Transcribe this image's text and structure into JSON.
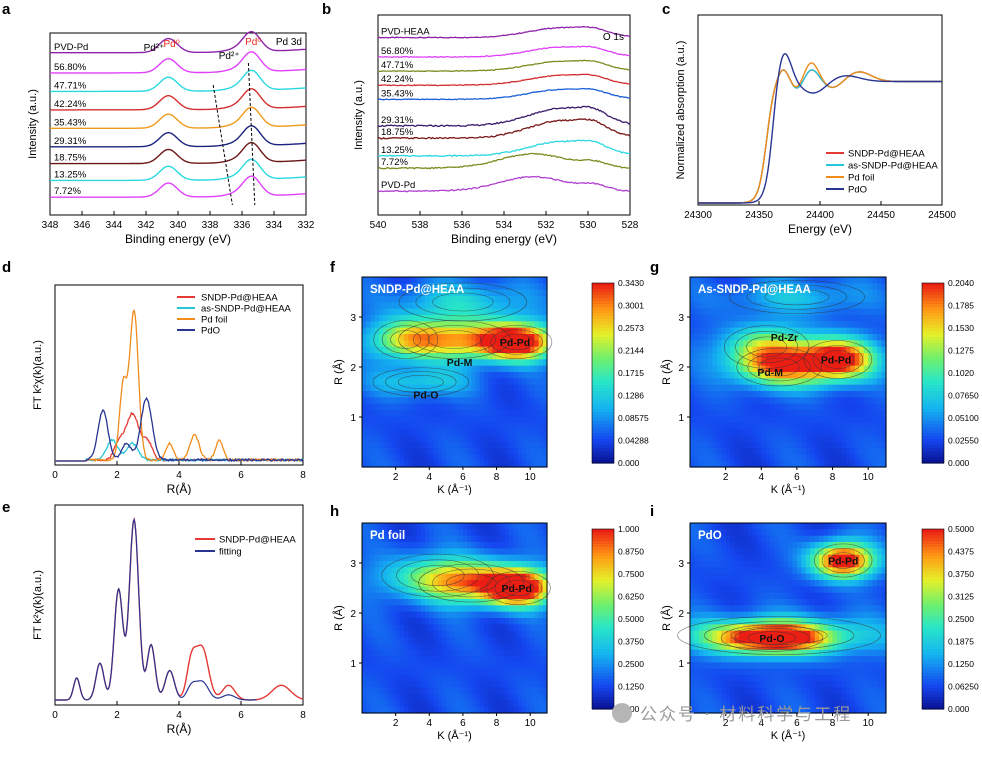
{
  "panel_labels": [
    "a",
    "b",
    "c",
    "d",
    "e",
    "f",
    "g",
    "h",
    "i"
  ],
  "watermark": "公众号 · 材料科学与工程",
  "chart_data": [
    {
      "id": "a",
      "type": "line",
      "xlabel": "Binding energy (eV)",
      "ylabel": "Intensity (a.u.)",
      "xlim": [
        348,
        332
      ],
      "xticks": [
        348,
        346,
        344,
        342,
        340,
        338,
        336,
        334,
        332
      ],
      "annot_corner": "Pd 3d",
      "annotations": [
        {
          "text": "Pd²⁺",
          "x": 341.5,
          "color": "#000"
        },
        {
          "text": "Pd⁰",
          "x": 340.4,
          "color": "#e8291c"
        },
        {
          "text": "Pd²⁺",
          "x": 336.8,
          "color": "#000"
        },
        {
          "text": "Pd⁰",
          "x": 335.3,
          "color": "#e8291c"
        }
      ],
      "series": [
        {
          "name": "PVD-Pd",
          "color": "#8e24aa",
          "offset": 9.3
        },
        {
          "name": "56.80%",
          "color": "#e040fb",
          "offset": 8.1
        },
        {
          "name": "47.71%",
          "color": "#2ad8e0",
          "offset": 7.0
        },
        {
          "name": "42.24%",
          "color": "#d32f2f",
          "offset": 5.9
        },
        {
          "name": "35.43%",
          "color": "#ef9a1a",
          "offset": 4.8
        },
        {
          "name": "29.31%",
          "color": "#1a237e",
          "offset": 3.7
        },
        {
          "name": "18.75%",
          "color": "#6d1818",
          "offset": 2.7
        },
        {
          "name": "13.25%",
          "color": "#2ad8e0",
          "offset": 1.7
        },
        {
          "name": "7.72%",
          "color": "#e040fb",
          "offset": 0.7
        }
      ]
    },
    {
      "id": "b",
      "type": "line",
      "xlabel": "Binding energy (eV)",
      "ylabel": "Intensity (a.u.)",
      "xlim": [
        540,
        528
      ],
      "xticks": [
        540,
        538,
        536,
        534,
        532,
        530,
        528
      ],
      "annot_corner": "O 1s",
      "series": [
        {
          "name": "PVD-HEAA",
          "color": "#8e24aa",
          "offset": 9.6
        },
        {
          "name": "56.80%",
          "color": "#e040fb",
          "offset": 8.5
        },
        {
          "name": "47.71%",
          "color": "#7c8c20",
          "offset": 7.7
        },
        {
          "name": "42.24%",
          "color": "#d32f2f",
          "offset": 6.9
        },
        {
          "name": "35.43%",
          "color": "#1a5fd8",
          "offset": 6.1
        },
        {
          "name": "29.31%",
          "color": "#3a1a6a",
          "offset": 4.6
        },
        {
          "name": "18.75%",
          "color": "#7a1818",
          "offset": 3.9
        },
        {
          "name": "13.25%",
          "color": "#2ad8e0",
          "offset": 2.9
        },
        {
          "name": "7.72%",
          "color": "#7c8c20",
          "offset": 2.2
        },
        {
          "name": "PVD-Pd",
          "color": "#b040d0",
          "offset": 0.9
        }
      ]
    },
    {
      "id": "c",
      "type": "line",
      "xlabel": "Energy (eV)",
      "ylabel": "Normalized absorption (a.u.)",
      "xlim": [
        24300,
        24500
      ],
      "xticks": [
        24300,
        24350,
        24400,
        24450,
        24500
      ],
      "legend_position": "lower-right",
      "series": [
        {
          "name": "SNDP-Pd@HEAA",
          "color": "#e53935"
        },
        {
          "name": "as-SNDP-Pd@HEAA",
          "color": "#26c6da"
        },
        {
          "name": "Pd foil",
          "color": "#ef8c1a"
        },
        {
          "name": "PdO",
          "color": "#283593"
        }
      ]
    },
    {
      "id": "d",
      "type": "line",
      "xlabel": "R(Å)",
      "ylabel": "FT k²χ(k)(a.u.)",
      "xlim": [
        0,
        8
      ],
      "xticks": [
        0,
        2,
        4,
        6,
        8
      ],
      "legend_position": "top-right",
      "series": [
        {
          "name": "SNDP-Pd@HEAA",
          "color": "#e53935",
          "peaks": [
            [
              2.5,
              0.28,
              0.22
            ],
            [
              2.05,
              0.09,
              0.15
            ],
            [
              3.0,
              0.1,
              0.15
            ]
          ]
        },
        {
          "name": "as-SNDP-Pd@HEAA",
          "color": "#26c6da",
          "peaks": [
            [
              1.85,
              0.12,
              0.18
            ],
            [
              2.5,
              0.1,
              0.18
            ]
          ]
        },
        {
          "name": "Pd foil",
          "color": "#ef8c1a",
          "peaks": [
            [
              2.55,
              0.9,
              0.14
            ],
            [
              2.2,
              0.45,
              0.12
            ],
            [
              3.7,
              0.1,
              0.12
            ],
            [
              4.5,
              0.15,
              0.15
            ],
            [
              5.3,
              0.12,
              0.12
            ]
          ]
        },
        {
          "name": "PdO",
          "color": "#283593",
          "peaks": [
            [
              1.55,
              0.3,
              0.16
            ],
            [
              2.95,
              0.37,
              0.18
            ],
            [
              2.3,
              0.1,
              0.15
            ]
          ]
        }
      ]
    },
    {
      "id": "e",
      "type": "line",
      "xlabel": "R(Å)",
      "ylabel": "FT k²χ(k)(a.u.)",
      "xlim": [
        0,
        8
      ],
      "xticks": [
        0,
        2,
        4,
        6,
        8
      ],
      "legend_position": "top-right",
      "series": [
        {
          "name": "SNDP-Pd@HEAA",
          "color": "#e53935"
        },
        {
          "name": "fitting",
          "color": "#283593"
        }
      ],
      "peaks": [
        [
          0.7,
          0.12,
          0.1
        ],
        [
          1.45,
          0.2,
          0.13
        ],
        [
          2.05,
          0.6,
          0.14
        ],
        [
          2.55,
          0.98,
          0.15
        ],
        [
          3.1,
          0.3,
          0.13
        ],
        [
          3.7,
          0.16,
          0.15
        ],
        [
          4.4,
          0.2,
          0.15
        ],
        [
          4.75,
          0.28,
          0.2
        ],
        [
          5.6,
          0.08,
          0.2
        ],
        [
          7.3,
          0.08,
          0.3
        ]
      ]
    },
    {
      "id": "f",
      "type": "heatmap",
      "title": "SNDP-Pd@HEAA",
      "xlabel": "K (Å⁻¹)",
      "ylabel": "R (Å)",
      "xlim": [
        0,
        11
      ],
      "ylim": [
        0,
        3.8
      ],
      "xticks": [
        2,
        4,
        6,
        8,
        10
      ],
      "yticks": [
        1,
        2,
        3
      ],
      "colorbar": [
        "0.3430",
        "0.3001",
        "0.2573",
        "0.2144",
        "0.1715",
        "0.1286",
        "0.08575",
        "0.04288",
        "0.000"
      ],
      "labels": [
        {
          "text": "Pd-Pd",
          "k": 9.1,
          "r": 2.5
        },
        {
          "text": "Pd-M",
          "k": 5.8,
          "r": 2.1
        },
        {
          "text": "Pd-O",
          "k": 3.8,
          "r": 1.45
        }
      ],
      "blobs": [
        [
          9.2,
          2.5,
          2.2,
          0.35,
          1.0
        ],
        [
          5.5,
          2.55,
          3.5,
          0.4,
          0.62
        ],
        [
          2.6,
          2.55,
          2.0,
          0.4,
          0.4
        ],
        [
          6,
          3.3,
          4,
          0.4,
          0.25
        ],
        [
          3.5,
          1.7,
          3,
          0.3,
          0.25
        ]
      ]
    },
    {
      "id": "g",
      "type": "heatmap",
      "title": "As-SNDP-Pd@HEAA",
      "xlabel": "K (Å⁻¹)",
      "ylabel": "R (Å)",
      "xlim": [
        0,
        11
      ],
      "ylim": [
        0,
        3.8
      ],
      "xticks": [
        2,
        4,
        6,
        8,
        10
      ],
      "yticks": [
        1,
        2,
        3
      ],
      "colorbar": [
        "0.2040",
        "0.1785",
        "0.1530",
        "0.1275",
        "0.1020",
        "0.07650",
        "0.05100",
        "0.02550",
        "0.000"
      ],
      "labels": [
        {
          "text": "Pd-Zr",
          "k": 5.3,
          "r": 2.6
        },
        {
          "text": "Pd-M",
          "k": 4.5,
          "r": 1.9
        },
        {
          "text": "Pd-Pd",
          "k": 8.2,
          "r": 2.15
        }
      ],
      "blobs": [
        [
          8.3,
          2.15,
          2.0,
          0.4,
          1.0
        ],
        [
          5,
          2.0,
          2.5,
          0.4,
          0.65
        ],
        [
          4.3,
          2.4,
          2.5,
          0.45,
          0.45
        ],
        [
          6,
          3.4,
          4,
          0.35,
          0.2
        ]
      ]
    },
    {
      "id": "h",
      "type": "heatmap",
      "title": "Pd foil",
      "xlabel": "K (Å⁻¹)",
      "ylabel": "R (Å)",
      "xlim": [
        0,
        11
      ],
      "ylim": [
        0,
        3.8
      ],
      "xticks": [
        2,
        4,
        6,
        8,
        10
      ],
      "yticks": [
        1,
        2,
        3
      ],
      "colorbar": [
        "1.000",
        "0.8750",
        "0.7500",
        "0.6250",
        "0.5000",
        "0.3750",
        "0.2500",
        "0.1250",
        "0.000"
      ],
      "labels": [
        {
          "text": "Pd-Pd",
          "k": 9.2,
          "r": 2.5
        }
      ],
      "blobs": [
        [
          9.3,
          2.5,
          2.0,
          0.35,
          1.0
        ],
        [
          6.5,
          2.6,
          3.3,
          0.4,
          0.55
        ],
        [
          4.5,
          2.75,
          3.5,
          0.45,
          0.3
        ]
      ]
    },
    {
      "id": "i",
      "type": "heatmap",
      "title": "PdO",
      "xlabel": "K (Å⁻¹)",
      "ylabel": "R (Å)",
      "xlim": [
        0,
        11
      ],
      "ylim": [
        0,
        3.8
      ],
      "xticks": [
        2,
        4,
        6,
        8,
        10
      ],
      "yticks": [
        1,
        2,
        3
      ],
      "colorbar": [
        "0.5000",
        "0.4375",
        "0.3750",
        "0.3125",
        "0.2500",
        "0.1875",
        "0.1250",
        "0.06250",
        "0.000"
      ],
      "labels": [
        {
          "text": "Pd-Pd",
          "k": 8.6,
          "r": 3.05
        },
        {
          "text": "Pd-O",
          "k": 4.6,
          "r": 1.5
        }
      ],
      "blobs": [
        [
          8.6,
          3.05,
          1.7,
          0.35,
          1.0
        ],
        [
          4.6,
          1.5,
          3.0,
          0.28,
          0.9
        ],
        [
          5,
          1.55,
          6,
          0.4,
          0.35
        ]
      ]
    }
  ]
}
